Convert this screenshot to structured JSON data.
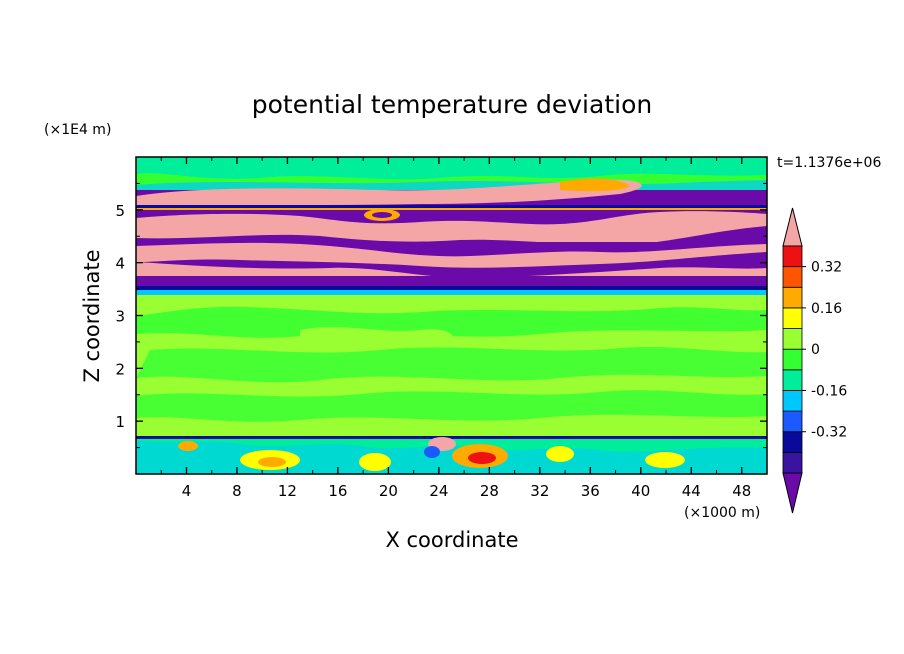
{
  "chart_data": {
    "type": "heatmap",
    "title": "potential temperature deviation",
    "xlabel": "X coordinate",
    "ylabel": "Z coordinate",
    "x_unit": "(×1000 m)",
    "y_unit": "(×1E4 m)",
    "time_label": "t=1.1376e+06",
    "xlim": [
      0,
      50
    ],
    "ylim": [
      0,
      6
    ],
    "x_ticks": [
      "4",
      "8",
      "12",
      "16",
      "20",
      "24",
      "28",
      "32",
      "36",
      "40",
      "44",
      "48"
    ],
    "y_ticks": [
      "1",
      "2",
      "3",
      "4",
      "5"
    ],
    "colorbar": {
      "levels": [
        -0.48,
        -0.4,
        -0.32,
        -0.24,
        -0.16,
        -0.08,
        0,
        0.08,
        0.16,
        0.24,
        0.32,
        0.4
      ],
      "colors": [
        "#6a0aa8",
        "#3a14a0",
        "#0a0a9a",
        "#1a5aff",
        "#00c8ff",
        "#00ee9a",
        "#33ff33",
        "#99ff33",
        "#ffff00",
        "#ffaa00",
        "#ff5500",
        "#ee1111",
        "#f4a6a6"
      ],
      "labels": [
        "0.32",
        "0.16",
        "0",
        "-0.16",
        "-0.32"
      ],
      "label_values": [
        0.32,
        0.16,
        0,
        -0.16,
        -0.32
      ],
      "extend": "both"
    },
    "bands": [
      {
        "z": [
          0,
          0.7
        ],
        "class": "mixed near-surface anomalies",
        "color": "#00ee9a"
      },
      {
        "z": [
          0.7,
          3.4
        ],
        "class": "near-zero deviation",
        "color": "#99ff33"
      },
      {
        "z": [
          3.4,
          5.0
        ],
        "class": "strong alternating layers",
        "color": "#6a0aa8"
      },
      {
        "z": [
          5.0,
          6.0
        ],
        "class": "upper layer",
        "color": "#00ee9a"
      }
    ]
  }
}
